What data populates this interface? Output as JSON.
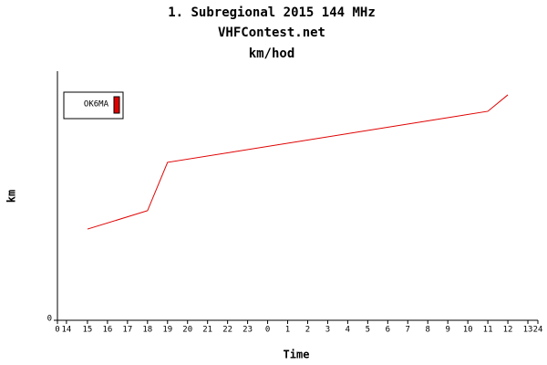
{
  "chart_data": {
    "type": "line",
    "title": "1. Subregional 2015 144 MHz",
    "subtitle": "VHFContest.net",
    "unit_title": "km/hod",
    "x_label": "Time",
    "y_label": "km",
    "x": [
      1.5,
      4.5,
      5.5,
      21.5,
      22.5
    ],
    "series": [
      {
        "name": "OK6MA",
        "color": "#e00000",
        "values": [
          36.6,
          44,
          63.4,
          83.9,
          90.5
        ]
      }
    ],
    "xlim": [
      0,
      24
    ],
    "xticks": [
      0,
      {
        "value": 0.45,
        "label": "14"
      },
      {
        "value": 1.5,
        "label": "15"
      },
      {
        "value": 2.5,
        "label": "16"
      },
      {
        "value": 3.5,
        "label": "17"
      },
      {
        "value": 4.5,
        "label": "18"
      },
      {
        "value": 5.5,
        "label": "19"
      },
      {
        "value": 6.5,
        "label": "20"
      },
      {
        "value": 7.5,
        "label": "21"
      },
      {
        "value": 8.5,
        "label": "22"
      },
      {
        "value": 9.5,
        "label": "23"
      },
      {
        "value": 10.5,
        "label": "0"
      },
      {
        "value": 11.5,
        "label": "1"
      },
      {
        "value": 12.5,
        "label": "2"
      },
      {
        "value": 13.5,
        "label": "3"
      },
      {
        "value": 14.5,
        "label": "4"
      },
      {
        "value": 15.5,
        "label": "5"
      },
      {
        "value": 16.5,
        "label": "6"
      },
      {
        "value": 17.5,
        "label": "7"
      },
      {
        "value": 18.5,
        "label": "8"
      },
      {
        "value": 19.5,
        "label": "9"
      },
      {
        "value": 20.5,
        "label": "10"
      },
      {
        "value": 21.5,
        "label": "11"
      },
      {
        "value": 22.5,
        "label": "12"
      },
      {
        "value": 23.5,
        "label": "13"
      },
      24
    ],
    "ylim": [
      0,
      100
    ],
    "yticks": [
      0
    ],
    "legend": "top-left"
  }
}
